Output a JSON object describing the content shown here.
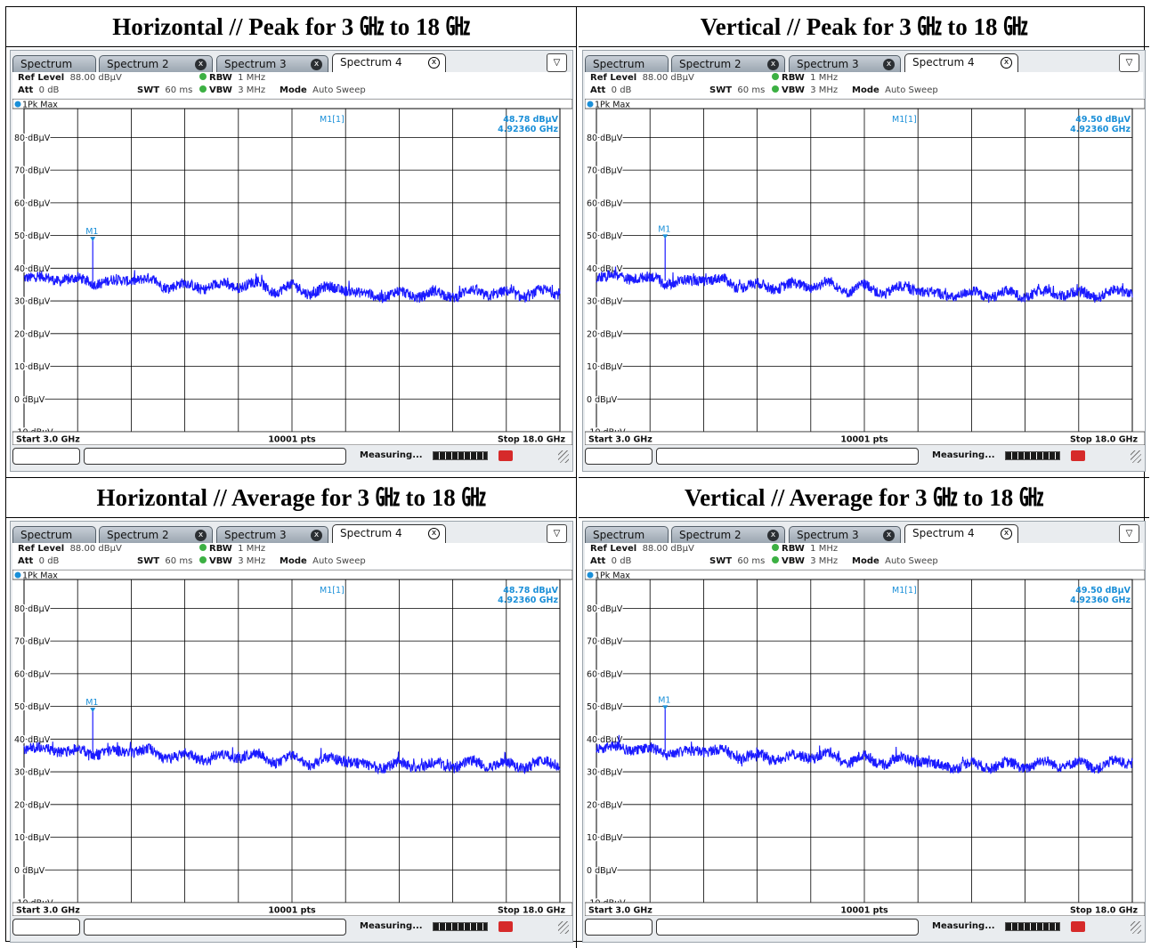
{
  "tabs": [
    {
      "label": "Spectrum",
      "closable": false,
      "active": false
    },
    {
      "label": "Spectrum 2",
      "closable": true,
      "active": false
    },
    {
      "label": "Spectrum 3",
      "closable": true,
      "active": false
    },
    {
      "label": "Spectrum 4",
      "closable": true,
      "active": true
    }
  ],
  "close_glyph": "x",
  "menu_icon": "menu-dropdown-icon",
  "params": {
    "ref_level_label": "Ref Level",
    "ref_level_value": "88.00 dBμV",
    "att_label": "Att",
    "att_value": "0 dB",
    "swt_label": "SWT",
    "swt_value": "60 ms",
    "rbw_label": "RBW",
    "rbw_value": "1 MHz",
    "vbw_label": "VBW",
    "vbw_value": "3 MHz",
    "mode_label": "Mode",
    "mode_value": "Auto Sweep"
  },
  "trace_label": "1Pk Max",
  "status": {
    "measuring": "Measuring..."
  },
  "colors": {
    "trace": "#1a1aff",
    "marker": "#1a8fd8",
    "grid": "#000000",
    "screen_bg": "#e9ecef"
  },
  "chart_data": [
    {
      "title": "Horizontal // Peak for 3 ㎓ to 18 ㎓",
      "type": "line",
      "x_start_label": "Start 3.0 GHz",
      "x_stop_label": "Stop 18.0 GHz",
      "points_label": "10001 pts",
      "xlim": [
        3.0,
        18.0
      ],
      "ylim": [
        -10,
        88
      ],
      "y_tick_labels": [
        "80 dBμV",
        "70 dBμV",
        "60 dBμV",
        "50 dBμV",
        "40 dBμV",
        "30 dBμV",
        "20 dBμV",
        "10 dBμV",
        "0 dBμV",
        "-10 dBμV"
      ],
      "y_ticks": [
        80,
        70,
        60,
        50,
        40,
        30,
        20,
        10,
        0,
        -10
      ],
      "marker": {
        "label": "M1",
        "readout_label": "M1[1]",
        "level_text": "48.78 dBμV",
        "freq_text": "4.92360 GHz",
        "x": 4.9236,
        "y": 48.78
      },
      "series": [
        {
          "x": [
            3.0,
            3.5,
            4.0,
            4.5,
            5.0,
            5.5,
            6.0,
            6.5,
            7.0,
            7.5,
            8.0,
            8.5,
            9.0,
            9.5,
            10.0,
            10.5,
            11.0,
            11.5,
            12.0,
            12.5,
            13.0,
            13.5,
            14.0,
            14.5,
            15.0,
            15.5,
            16.0,
            16.5,
            17.0,
            17.5,
            18.0
          ],
          "values": [
            37.0,
            37.5,
            36.0,
            37.0,
            35.0,
            36.5,
            36.0,
            37.0,
            34.0,
            35.5,
            33.5,
            35.5,
            34.0,
            36.0,
            32.5,
            35.0,
            32.0,
            34.5,
            33.0,
            32.5,
            31.0,
            33.0,
            31.0,
            33.0,
            31.0,
            33.5,
            31.5,
            33.0,
            31.0,
            33.5,
            32.0
          ]
        }
      ]
    },
    {
      "title": "Vertical // Peak for 3 ㎓ to 18 ㎓",
      "type": "line",
      "x_start_label": "Start 3.0 GHz",
      "x_stop_label": "Stop 18.0 GHz",
      "points_label": "10001 pts",
      "xlim": [
        3.0,
        18.0
      ],
      "ylim": [
        -10,
        88
      ],
      "y_tick_labels": [
        "80 dBμV",
        "70 dBμV",
        "60 dBμV",
        "50 dBμV",
        "40 dBμV",
        "30 dBμV",
        "20 dBμV",
        "10 dBμV",
        "0 dBμV",
        "-10 dBμV"
      ],
      "y_ticks": [
        80,
        70,
        60,
        50,
        40,
        30,
        20,
        10,
        0,
        -10
      ],
      "marker": {
        "label": "M1",
        "readout_label": "M1[1]",
        "level_text": "49.50 dBμV",
        "freq_text": "4.92360 GHz",
        "x": 4.9236,
        "y": 49.5
      },
      "series": [
        {
          "x": [
            3.0,
            3.5,
            4.0,
            4.5,
            5.0,
            5.5,
            6.0,
            6.5,
            7.0,
            7.5,
            8.0,
            8.5,
            9.0,
            9.5,
            10.0,
            10.5,
            11.0,
            11.5,
            12.0,
            12.5,
            13.0,
            13.5,
            14.0,
            14.5,
            15.0,
            15.5,
            16.0,
            16.5,
            17.0,
            17.5,
            18.0
          ],
          "values": [
            37.0,
            38.0,
            36.5,
            37.5,
            35.0,
            36.5,
            36.0,
            37.0,
            34.0,
            35.5,
            33.5,
            35.5,
            34.0,
            36.0,
            32.5,
            35.0,
            32.0,
            34.5,
            33.0,
            32.5,
            31.0,
            33.0,
            31.0,
            33.0,
            31.0,
            33.5,
            31.5,
            33.0,
            31.0,
            33.5,
            32.0
          ]
        }
      ]
    },
    {
      "title": "Horizontal // Average for 3 ㎓ to 18 ㎓",
      "type": "line",
      "x_start_label": "Start 3.0 GHz",
      "x_stop_label": "Stop 18.0 GHz",
      "points_label": "10001 pts",
      "xlim": [
        3.0,
        18.0
      ],
      "ylim": [
        -10,
        88
      ],
      "y_tick_labels": [
        "80 dBμV",
        "70 dBμV",
        "60 dBμV",
        "50 dBμV",
        "40 dBμV",
        "30 dBμV",
        "20 dBμV",
        "10 dBμV",
        "0 dBμV",
        "-10 dBμV"
      ],
      "y_ticks": [
        80,
        70,
        60,
        50,
        40,
        30,
        20,
        10,
        0,
        -10
      ],
      "marker": {
        "label": "M1",
        "readout_label": "M1[1]",
        "level_text": "48.78 dBμV",
        "freq_text": "4.92360 GHz",
        "x": 4.9236,
        "y": 48.78
      },
      "series": [
        {
          "x": [
            3.0,
            3.5,
            4.0,
            4.5,
            5.0,
            5.5,
            6.0,
            6.5,
            7.0,
            7.5,
            8.0,
            8.5,
            9.0,
            9.5,
            10.0,
            10.5,
            11.0,
            11.5,
            12.0,
            12.5,
            13.0,
            13.5,
            14.0,
            14.5,
            15.0,
            15.5,
            16.0,
            16.5,
            17.0,
            17.5,
            18.0
          ],
          "values": [
            37.0,
            37.5,
            36.0,
            37.0,
            35.0,
            36.5,
            36.0,
            37.0,
            34.0,
            35.5,
            33.5,
            35.5,
            34.0,
            36.0,
            32.5,
            35.0,
            32.0,
            34.5,
            33.0,
            32.5,
            31.0,
            33.0,
            31.0,
            33.0,
            31.0,
            33.5,
            31.5,
            33.0,
            31.0,
            33.5,
            32.0
          ]
        }
      ]
    },
    {
      "title": "Vertical // Average for 3 ㎓ to 18 ㎓",
      "type": "line",
      "x_start_label": "Start 3.0 GHz",
      "x_stop_label": "Stop 18.0 GHz",
      "points_label": "10001 pts",
      "xlim": [
        3.0,
        18.0
      ],
      "ylim": [
        -10,
        88
      ],
      "y_tick_labels": [
        "80 dBμV",
        "70 dBμV",
        "60 dBμV",
        "50 dBμV",
        "40 dBμV",
        "30 dBμV",
        "20 dBμV",
        "10 dBμV",
        "0 dBμV",
        "-10 dBμV"
      ],
      "y_ticks": [
        80,
        70,
        60,
        50,
        40,
        30,
        20,
        10,
        0,
        -10
      ],
      "marker": {
        "label": "M1",
        "readout_label": "M1[1]",
        "level_text": "49.50 dBμV",
        "freq_text": "4.92360 GHz",
        "x": 4.9236,
        "y": 49.5
      },
      "series": [
        {
          "x": [
            3.0,
            3.5,
            4.0,
            4.5,
            5.0,
            5.5,
            6.0,
            6.5,
            7.0,
            7.5,
            8.0,
            8.5,
            9.0,
            9.5,
            10.0,
            10.5,
            11.0,
            11.5,
            12.0,
            12.5,
            13.0,
            13.5,
            14.0,
            14.5,
            15.0,
            15.5,
            16.0,
            16.5,
            17.0,
            17.5,
            18.0
          ],
          "values": [
            37.0,
            38.0,
            36.5,
            37.5,
            35.0,
            36.5,
            36.0,
            37.0,
            34.0,
            35.5,
            33.5,
            35.5,
            34.0,
            36.0,
            32.5,
            35.0,
            32.0,
            34.5,
            33.0,
            32.5,
            31.0,
            33.0,
            31.0,
            33.0,
            31.0,
            33.5,
            31.5,
            33.0,
            31.0,
            33.5,
            32.0
          ]
        }
      ]
    }
  ]
}
